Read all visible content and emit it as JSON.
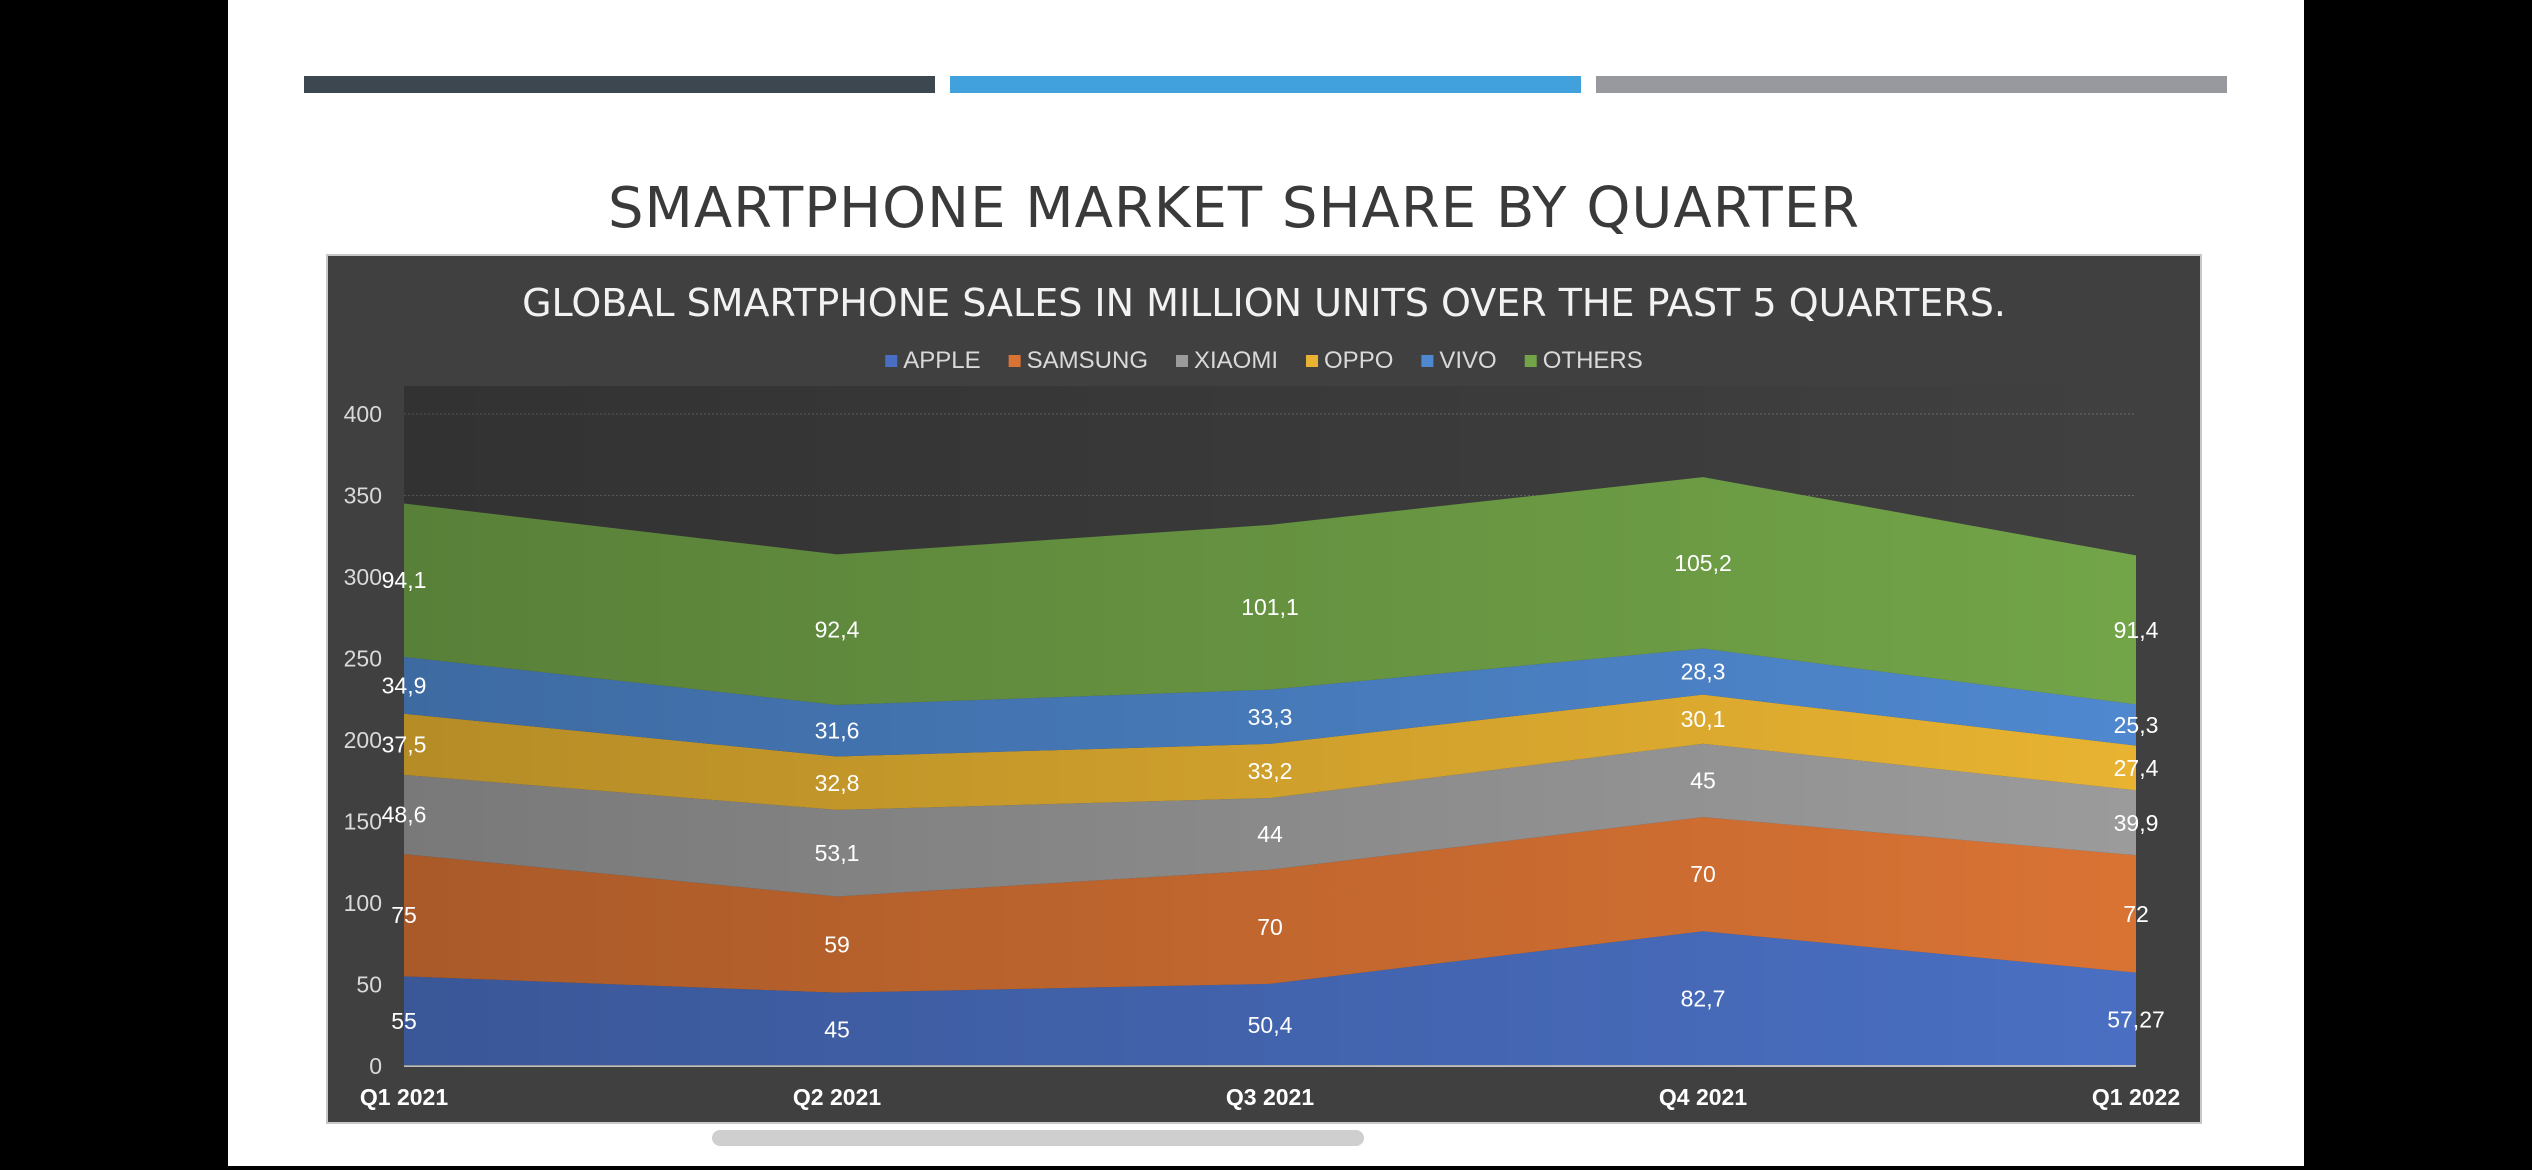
{
  "slide": {
    "title": "SMARTPHONE MARKET SHARE BY QUARTER",
    "header_bar_colors": [
      "#3d4750",
      "#41a1dc",
      "#97999e"
    ]
  },
  "chart_data": {
    "type": "area",
    "stacked": true,
    "title": "GLOBAL SMARTPHONE SALES IN MILLION UNITS OVER THE PAST 5 QUARTERS.",
    "xlabel": "",
    "ylabel": "",
    "categories": [
      "Q1 2021",
      "Q2 2021",
      "Q3 2021",
      "Q4 2021",
      "Q1 2022"
    ],
    "ylim": [
      0,
      400
    ],
    "yticks": [
      "0",
      "50",
      "100",
      "150",
      "200",
      "250",
      "300",
      "350",
      "400"
    ],
    "grid": true,
    "legend": "top-center",
    "series": [
      {
        "name": "APPLE",
        "color": "#4a6fc2",
        "values": [
          55,
          45,
          50.4,
          82.7,
          57.27
        ],
        "labels": [
          "55",
          "45",
          "50,4",
          "82,7",
          "57,27"
        ]
      },
      {
        "name": "SAMSUNG",
        "color": "#d97334",
        "values": [
          75,
          59,
          70,
          70,
          72
        ],
        "labels": [
          "75",
          "59",
          "70",
          "70",
          "72"
        ]
      },
      {
        "name": "XIAOMI",
        "color": "#9b9b9b",
        "values": [
          48.6,
          53.1,
          44,
          45,
          39.9
        ],
        "labels": [
          "48,6",
          "53,1",
          "44",
          "45",
          "39,9"
        ]
      },
      {
        "name": "OPPO",
        "color": "#e8b331",
        "values": [
          37.5,
          32.8,
          33.2,
          30.1,
          27.4
        ],
        "labels": [
          "37,5",
          "32,8",
          "33,2",
          "30,1",
          "27,4"
        ]
      },
      {
        "name": "VIVO",
        "color": "#4f88cf",
        "values": [
          34.9,
          31.6,
          33.3,
          28.3,
          25.3
        ],
        "labels": [
          "34,9",
          "31,6",
          "33,3",
          "28,3",
          "25,3"
        ]
      },
      {
        "name": "OTHERS",
        "color": "#72a448",
        "values": [
          94.1,
          92.4,
          101.1,
          105.2,
          91.4
        ],
        "labels": [
          "94,1",
          "92,4",
          "101,1",
          "105,2",
          "91,4"
        ]
      }
    ],
    "text_color": "#ffffff",
    "tick_color": "#d9d9d9",
    "background": "#404040"
  }
}
